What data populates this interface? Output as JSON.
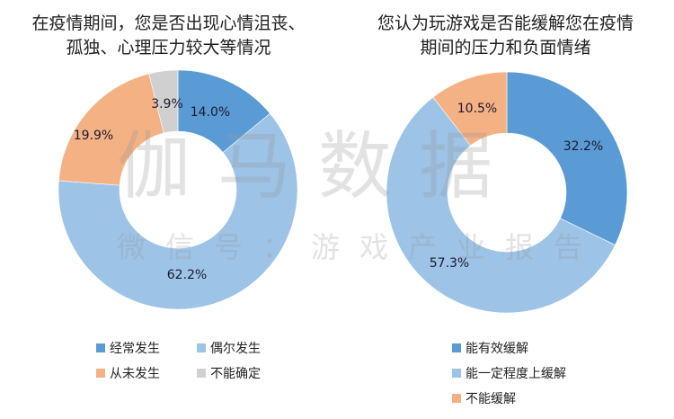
{
  "left_chart": {
    "title_line1": "在疫情期间，您是否出现心情沮丧、",
    "title_line2": "孤独、心理压力较大等情况",
    "legend": [
      {
        "label": "经常发生",
        "color": "#5b9bd5"
      },
      {
        "label": "偶尔发生",
        "color": "#9dc3e6"
      },
      {
        "label": "从未发生",
        "color": "#f4b183"
      },
      {
        "label": "不能确定",
        "color": "#d0d0d0"
      }
    ],
    "labels": [
      "14.0%",
      "62.2%",
      "19.9%",
      "3.9%"
    ]
  },
  "right_chart": {
    "title_line1": "您认为玩游戏是否能缓解您在疫情",
    "title_line2": "期间的压力和负面情绪",
    "legend": [
      {
        "label": "能有效缓解",
        "color": "#5b9bd5"
      },
      {
        "label": "能一定程度上缓解",
        "color": "#9dc3e6"
      },
      {
        "label": "不能缓解",
        "color": "#f4b183"
      }
    ],
    "labels": [
      "32.2%",
      "57.3%",
      "10.5%"
    ]
  },
  "watermark": {
    "main": "伽马数据",
    "sub": "微信号：游戏产业报告"
  },
  "chart_data": [
    {
      "type": "pie",
      "title": "在疫情期间，您是否出现心情沮丧、孤独、心理压力较大等情况",
      "categories": [
        "经常发生",
        "偶尔发生",
        "从未发生",
        "不能确定"
      ],
      "values": [
        14.0,
        62.2,
        19.9,
        3.9
      ],
      "colors": [
        "#5b9bd5",
        "#9dc3e6",
        "#f4b183",
        "#d0d0d0"
      ],
      "donut": true,
      "unit": "%",
      "legend_position": "bottom"
    },
    {
      "type": "pie",
      "title": "您认为玩游戏是否能缓解您在疫情期间的压力和负面情绪",
      "categories": [
        "能有效缓解",
        "能一定程度上缓解",
        "不能缓解"
      ],
      "values": [
        32.2,
        57.3,
        10.5
      ],
      "colors": [
        "#5b9bd5",
        "#9dc3e6",
        "#f4b183"
      ],
      "donut": true,
      "unit": "%",
      "legend_position": "bottom"
    }
  ]
}
